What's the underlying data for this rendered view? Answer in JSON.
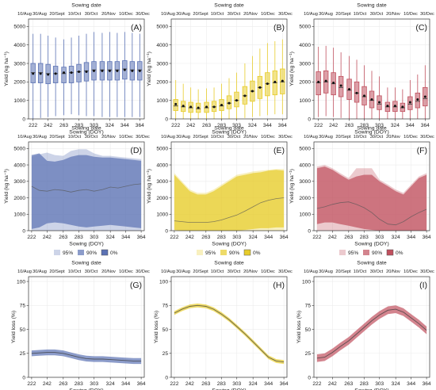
{
  "figure": {
    "xlabel": "Sowing (DOY)",
    "top_xlabel": "Sowing date",
    "top_ticks": [
      "10/Aug",
      "30/Aug",
      "20/Sept",
      "10/Oct",
      "30/Oct",
      "20/Nov",
      "10/Dec",
      "30/Dec"
    ],
    "x_ticks": [
      222,
      242,
      263,
      283,
      303,
      324,
      344,
      364
    ],
    "legend_labels": [
      "95%",
      "90%",
      "0%"
    ],
    "colors": {
      "blue": "#5b72b4",
      "yellow": "#e7cc2a",
      "red": "#c0505e"
    }
  },
  "chart_data": [
    {
      "panel": "(A)",
      "type": "box",
      "color": "#5b72b4",
      "ylabel": "Yield (kg ha⁻¹)",
      "ylim": [
        0,
        5400
      ],
      "yticks": [
        0,
        1000,
        2000,
        3000,
        4000,
        5000
      ],
      "xlim": [
        216,
        370
      ],
      "x": [
        222,
        232,
        242,
        252,
        263,
        273,
        283,
        293,
        303,
        314,
        324,
        334,
        344,
        354,
        364
      ],
      "q1": [
        1950,
        1950,
        1900,
        1950,
        1950,
        1950,
        2000,
        2050,
        2100,
        2100,
        2100,
        2100,
        2150,
        2100,
        2100
      ],
      "median": [
        2500,
        2500,
        2450,
        2450,
        2450,
        2500,
        2550,
        2600,
        2650,
        2650,
        2650,
        2650,
        2700,
        2650,
        2650
      ],
      "q3": [
        3000,
        3000,
        2950,
        2850,
        2800,
        2850,
        2950,
        3050,
        3100,
        3100,
        3100,
        3100,
        3150,
        3100,
        3100
      ],
      "mean": [
        2450,
        2450,
        2400,
        2450,
        2500,
        2500,
        2550,
        2550,
        2600,
        2600,
        2600,
        2600,
        2650,
        2600,
        2600
      ],
      "whisker_low": [
        0,
        50,
        100,
        150,
        200,
        250,
        200,
        150,
        150,
        100,
        100,
        100,
        100,
        100,
        100
      ],
      "whisker_high": [
        4600,
        4600,
        4500,
        4400,
        4300,
        4400,
        4500,
        4600,
        4700,
        4650,
        4700,
        4650,
        4700,
        4650,
        4600
      ]
    },
    {
      "panel": "(B)",
      "type": "box",
      "color": "#e7cc2a",
      "ylabel": "Yield (kg ha⁻¹)",
      "ylim": [
        0,
        5400
      ],
      "yticks": [
        0,
        1000,
        2000,
        3000,
        4000,
        5000
      ],
      "xlim": [
        216,
        370
      ],
      "x": [
        222,
        232,
        242,
        252,
        263,
        273,
        283,
        293,
        303,
        314,
        324,
        334,
        344,
        354,
        364
      ],
      "q1": [
        450,
        400,
        350,
        350,
        350,
        400,
        450,
        550,
        650,
        800,
        950,
        1100,
        1250,
        1300,
        1350
      ],
      "median": [
        700,
        650,
        600,
        550,
        600,
        650,
        700,
        850,
        1000,
        1250,
        1500,
        1700,
        1900,
        1950,
        2000
      ],
      "q3": [
        1050,
        950,
        900,
        850,
        900,
        950,
        1050,
        1250,
        1450,
        1750,
        2050,
        2300,
        2500,
        2600,
        2700
      ],
      "mean": [
        800,
        700,
        650,
        600,
        650,
        650,
        750,
        850,
        1000,
        1250,
        1500,
        1700,
        1900,
        2000,
        2050
      ],
      "whisker_low": [
        0,
        0,
        0,
        0,
        0,
        0,
        0,
        0,
        0,
        50,
        100,
        150,
        200,
        250,
        250
      ],
      "whisker_high": [
        2100,
        1900,
        1700,
        1600,
        1650,
        1700,
        1900,
        2200,
        2500,
        3000,
        3400,
        3800,
        4100,
        4200,
        4300
      ]
    },
    {
      "panel": "(C)",
      "type": "box",
      "color": "#c0505e",
      "ylabel": "Yield (kg ha⁻¹)",
      "ylim": [
        0,
        5400
      ],
      "yticks": [
        0,
        1000,
        2000,
        3000,
        4000,
        5000
      ],
      "xlim": [
        216,
        370
      ],
      "x": [
        222,
        232,
        242,
        252,
        263,
        273,
        283,
        293,
        303,
        314,
        324,
        334,
        344,
        354,
        364
      ],
      "q1": [
        1300,
        1400,
        1300,
        1200,
        1050,
        900,
        750,
        600,
        500,
        400,
        400,
        400,
        500,
        600,
        700
      ],
      "median": [
        1950,
        2000,
        1900,
        1700,
        1550,
        1400,
        1200,
        1000,
        800,
        650,
        650,
        600,
        800,
        950,
        1100
      ],
      "q3": [
        2550,
        2600,
        2500,
        2300,
        2150,
        2000,
        1750,
        1500,
        1250,
        900,
        950,
        850,
        1200,
        1400,
        1700
      ],
      "mean": [
        2000,
        2050,
        1950,
        1800,
        1600,
        1400,
        1250,
        1050,
        900,
        700,
        700,
        650,
        900,
        1050,
        1200
      ],
      "whisker_low": [
        100,
        150,
        100,
        50,
        0,
        0,
        0,
        0,
        0,
        0,
        0,
        0,
        0,
        0,
        0
      ],
      "whisker_high": [
        3900,
        3950,
        3850,
        3600,
        3400,
        3200,
        2900,
        2600,
        2300,
        1700,
        1700,
        1600,
        2100,
        2400,
        2900
      ]
    },
    {
      "panel": "(D)",
      "type": "area",
      "color": "#5b72b4",
      "ylabel": "Yield (kg ha⁻¹)",
      "ylim": [
        0,
        5400
      ],
      "yticks": [
        0,
        1000,
        2000,
        3000,
        4000,
        5000
      ],
      "xlim": [
        218,
        368
      ],
      "x": [
        222,
        232,
        242,
        252,
        263,
        273,
        283,
        293,
        303,
        314,
        324,
        334,
        344,
        354,
        364
      ],
      "series": [
        {
          "name": "95%",
          "upper": [
            4500,
            4650,
            4750,
            4600,
            4550,
            4850,
            4950,
            4950,
            4700,
            4550,
            4550,
            4500,
            4450,
            4400,
            4350
          ],
          "lower": [
            0,
            0,
            0,
            0,
            0,
            0,
            0,
            0,
            0,
            0,
            0,
            0,
            0,
            0,
            0
          ]
        },
        {
          "name": "90%",
          "upper": [
            4600,
            4700,
            4250,
            4200,
            4300,
            4500,
            4600,
            4600,
            4500,
            4450,
            4450,
            4400,
            4350,
            4300,
            4250
          ],
          "lower": [
            100,
            200,
            450,
            500,
            450,
            350,
            250,
            200,
            250,
            300,
            350,
            300,
            250,
            200,
            150
          ]
        },
        {
          "name": "0%",
          "values": [
            2700,
            2450,
            2400,
            2500,
            2450,
            2350,
            2450,
            2500,
            2400,
            2500,
            2650,
            2600,
            2700,
            2800,
            2850
          ]
        }
      ]
    },
    {
      "panel": "(E)",
      "type": "area",
      "color": "#e7cc2a",
      "ylabel": "Yield (kg ha⁻¹)",
      "ylim": [
        0,
        5400
      ],
      "yticks": [
        0,
        1000,
        2000,
        3000,
        4000,
        5000
      ],
      "xlim": [
        218,
        368
      ],
      "x": [
        222,
        232,
        242,
        252,
        263,
        273,
        283,
        293,
        303,
        314,
        324,
        334,
        344,
        354,
        364
      ],
      "series": [
        {
          "name": "95%",
          "upper": [
            3500,
            3000,
            2500,
            2300,
            2300,
            2500,
            2800,
            3100,
            3400,
            3500,
            3600,
            3650,
            3700,
            3750,
            3750
          ],
          "lower": [
            0,
            0,
            0,
            0,
            0,
            0,
            0,
            0,
            0,
            0,
            0,
            0,
            0,
            0,
            0
          ]
        },
        {
          "name": "90%",
          "upper": [
            3400,
            2900,
            2400,
            2200,
            2200,
            2400,
            2700,
            3000,
            3300,
            3400,
            3500,
            3550,
            3650,
            3700,
            3650
          ],
          "lower": [
            50,
            0,
            0,
            0,
            0,
            0,
            0,
            0,
            0,
            50,
            100,
            150,
            150,
            200,
            200
          ]
        },
        {
          "name": "0%",
          "values": [
            600,
            550,
            500,
            500,
            500,
            550,
            650,
            800,
            950,
            1200,
            1450,
            1700,
            1850,
            1950,
            2000
          ]
        }
      ]
    },
    {
      "panel": "(F)",
      "type": "area",
      "color": "#c0505e",
      "ylabel": "Yield (kg ha⁻¹)",
      "ylim": [
        0,
        5400
      ],
      "yticks": [
        0,
        1000,
        2000,
        3000,
        4000,
        5000
      ],
      "xlim": [
        218,
        368
      ],
      "x": [
        222,
        232,
        242,
        252,
        263,
        273,
        283,
        293,
        303,
        314,
        324,
        334,
        344,
        354,
        364
      ],
      "series": [
        {
          "name": "95%",
          "upper": [
            3900,
            4000,
            3800,
            3500,
            3200,
            3800,
            3800,
            3800,
            3100,
            2800,
            2500,
            2300,
            2800,
            3300,
            3500
          ],
          "lower": [
            0,
            0,
            0,
            0,
            0,
            0,
            0,
            0,
            0,
            0,
            0,
            0,
            0,
            0,
            0
          ]
        },
        {
          "name": "90%",
          "upper": [
            3800,
            3900,
            3700,
            3400,
            3100,
            3300,
            3400,
            3400,
            3000,
            2700,
            2400,
            2200,
            2700,
            3200,
            3400
          ],
          "lower": [
            400,
            500,
            500,
            400,
            300,
            200,
            100,
            50,
            0,
            0,
            0,
            0,
            0,
            0,
            0
          ]
        },
        {
          "name": "0%",
          "values": [
            1350,
            1450,
            1600,
            1700,
            1750,
            1600,
            1400,
            1100,
            700,
            400,
            350,
            550,
            850,
            1100,
            1300
          ]
        }
      ]
    },
    {
      "panel": "(G)",
      "type": "line",
      "color": "#5b72b4",
      "ylabel": "Yield loss (%)",
      "ylim": [
        0,
        105
      ],
      "yticks": [
        0,
        25,
        50,
        75,
        100
      ],
      "xlim": [
        218,
        368
      ],
      "x": [
        222,
        232,
        242,
        252,
        263,
        273,
        283,
        293,
        303,
        314,
        324,
        334,
        344,
        354,
        364
      ],
      "series": [
        {
          "values": [
            25,
            25.5,
            26,
            26,
            25,
            23,
            21,
            19.5,
            19,
            19,
            18.5,
            18,
            17.5,
            17,
            17
          ],
          "upper": [
            28,
            28.5,
            29,
            29,
            28,
            26,
            24,
            22.5,
            22,
            22,
            21.5,
            21,
            20.5,
            20,
            20
          ],
          "lower": [
            22,
            22.5,
            23,
            23,
            22,
            20,
            18,
            16.5,
            16,
            16,
            15.5,
            15,
            14.5,
            14,
            14
          ]
        }
      ]
    },
    {
      "panel": "(H)",
      "type": "line",
      "color": "#e7cc2a",
      "ylabel": "Yield loss (%)",
      "ylim": [
        0,
        105
      ],
      "yticks": [
        0,
        25,
        50,
        75,
        100
      ],
      "xlim": [
        218,
        368
      ],
      "x": [
        222,
        232,
        242,
        252,
        263,
        273,
        283,
        293,
        303,
        314,
        324,
        334,
        344,
        354,
        364
      ],
      "series": [
        {
          "values": [
            67,
            71,
            74,
            75,
            74,
            71,
            66,
            60,
            53,
            45,
            37,
            29,
            21,
            17,
            16
          ],
          "upper": [
            69,
            73,
            76,
            77,
            76,
            73,
            68,
            62,
            55,
            47,
            39,
            31,
            23,
            19,
            18
          ],
          "lower": [
            65,
            69,
            72,
            73,
            72,
            69,
            64,
            58,
            51,
            43,
            35,
            27,
            19,
            15,
            14
          ]
        }
      ]
    },
    {
      "panel": "(I)",
      "type": "line",
      "color": "#c0505e",
      "ylabel": "Yield loss (%)",
      "ylim": [
        0,
        105
      ],
      "yticks": [
        0,
        25,
        50,
        75,
        100
      ],
      "xlim": [
        218,
        368
      ],
      "x": [
        222,
        232,
        242,
        252,
        263,
        273,
        283,
        293,
        303,
        314,
        324,
        334,
        344,
        354,
        364
      ],
      "series": [
        {
          "values": [
            20,
            21,
            26,
            32,
            38,
            45,
            52,
            59,
            65,
            70,
            71,
            68,
            62,
            56,
            49
          ],
          "upper": [
            24,
            25,
            30,
            36,
            42,
            49,
            56,
            63,
            69,
            74,
            75,
            72,
            66,
            60,
            53
          ],
          "lower": [
            16,
            17,
            22,
            28,
            34,
            41,
            48,
            55,
            61,
            66,
            67,
            64,
            58,
            52,
            45
          ]
        }
      ]
    }
  ]
}
